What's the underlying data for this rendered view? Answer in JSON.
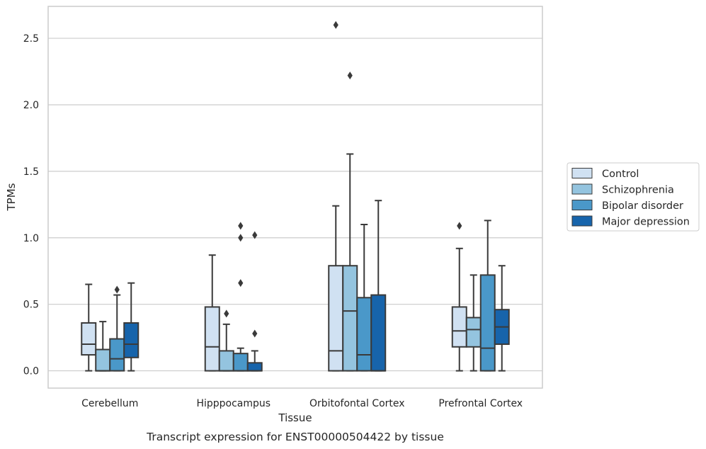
{
  "chart_data": {
    "type": "box",
    "title": "",
    "caption": "Transcript expression for ENST00000504422 by tissue",
    "xlabel": "Tissue",
    "ylabel": "TPMs",
    "ylim": [
      -0.13,
      2.74
    ],
    "yticks": [
      0.0,
      0.5,
      1.0,
      1.5,
      2.0,
      2.5
    ],
    "ytick_labels": [
      "0.0",
      "0.5",
      "1.0",
      "1.5",
      "2.0",
      "2.5"
    ],
    "grid": true,
    "legend_position": "right",
    "categories": [
      "Cerebellum",
      "Hipppocampus",
      "Orbitofontal Cortex",
      "Prefrontal Cortex"
    ],
    "series": [
      {
        "name": "Control",
        "color": "#d0e1f2",
        "boxes": [
          {
            "min": 0.0,
            "q1": 0.12,
            "median": 0.2,
            "q3": 0.36,
            "max": 0.65,
            "outliers": []
          },
          {
            "min": 0.0,
            "q1": 0.0,
            "median": 0.18,
            "q3": 0.48,
            "max": 0.87,
            "outliers": []
          },
          {
            "min": 0.0,
            "q1": 0.0,
            "median": 0.15,
            "q3": 0.79,
            "max": 1.24,
            "outliers": [
              2.6
            ]
          },
          {
            "min": 0.0,
            "q1": 0.18,
            "median": 0.3,
            "q3": 0.48,
            "max": 0.92,
            "outliers": [
              1.09
            ]
          }
        ]
      },
      {
        "name": "Schizophrenia",
        "color": "#94c4df",
        "boxes": [
          {
            "min": 0.0,
            "q1": 0.0,
            "median": 0.0,
            "q3": 0.16,
            "max": 0.37,
            "outliers": []
          },
          {
            "min": 0.0,
            "q1": 0.0,
            "median": 0.0,
            "q3": 0.15,
            "max": 0.35,
            "outliers": [
              0.43
            ]
          },
          {
            "min": 0.0,
            "q1": 0.0,
            "median": 0.45,
            "q3": 0.79,
            "max": 1.63,
            "outliers": [
              2.22
            ]
          },
          {
            "min": 0.0,
            "q1": 0.18,
            "median": 0.31,
            "q3": 0.4,
            "max": 0.72,
            "outliers": []
          }
        ]
      },
      {
        "name": "Bipolar disorder",
        "color": "#4a98c9",
        "boxes": [
          {
            "min": 0.0,
            "q1": 0.0,
            "median": 0.09,
            "q3": 0.24,
            "max": 0.57,
            "outliers": [
              0.61
            ]
          },
          {
            "min": 0.0,
            "q1": 0.0,
            "median": 0.0,
            "q3": 0.13,
            "max": 0.17,
            "outliers": [
              0.66,
              1.0,
              1.09
            ]
          },
          {
            "min": 0.0,
            "q1": 0.0,
            "median": 0.12,
            "q3": 0.55,
            "max": 1.1,
            "outliers": []
          },
          {
            "min": 0.0,
            "q1": 0.0,
            "median": 0.17,
            "q3": 0.72,
            "max": 1.13,
            "outliers": []
          }
        ]
      },
      {
        "name": "Major depression",
        "color": "#1764ab",
        "boxes": [
          {
            "min": 0.0,
            "q1": 0.1,
            "median": 0.2,
            "q3": 0.36,
            "max": 0.66,
            "outliers": []
          },
          {
            "min": 0.0,
            "q1": 0.0,
            "median": 0.0,
            "q3": 0.06,
            "max": 0.15,
            "outliers": [
              0.28,
              1.02
            ]
          },
          {
            "min": 0.0,
            "q1": 0.0,
            "median": 0.0,
            "q3": 0.57,
            "max": 1.28,
            "outliers": []
          },
          {
            "min": 0.0,
            "q1": 0.2,
            "median": 0.33,
            "q3": 0.46,
            "max": 0.79,
            "outliers": []
          }
        ]
      }
    ]
  }
}
